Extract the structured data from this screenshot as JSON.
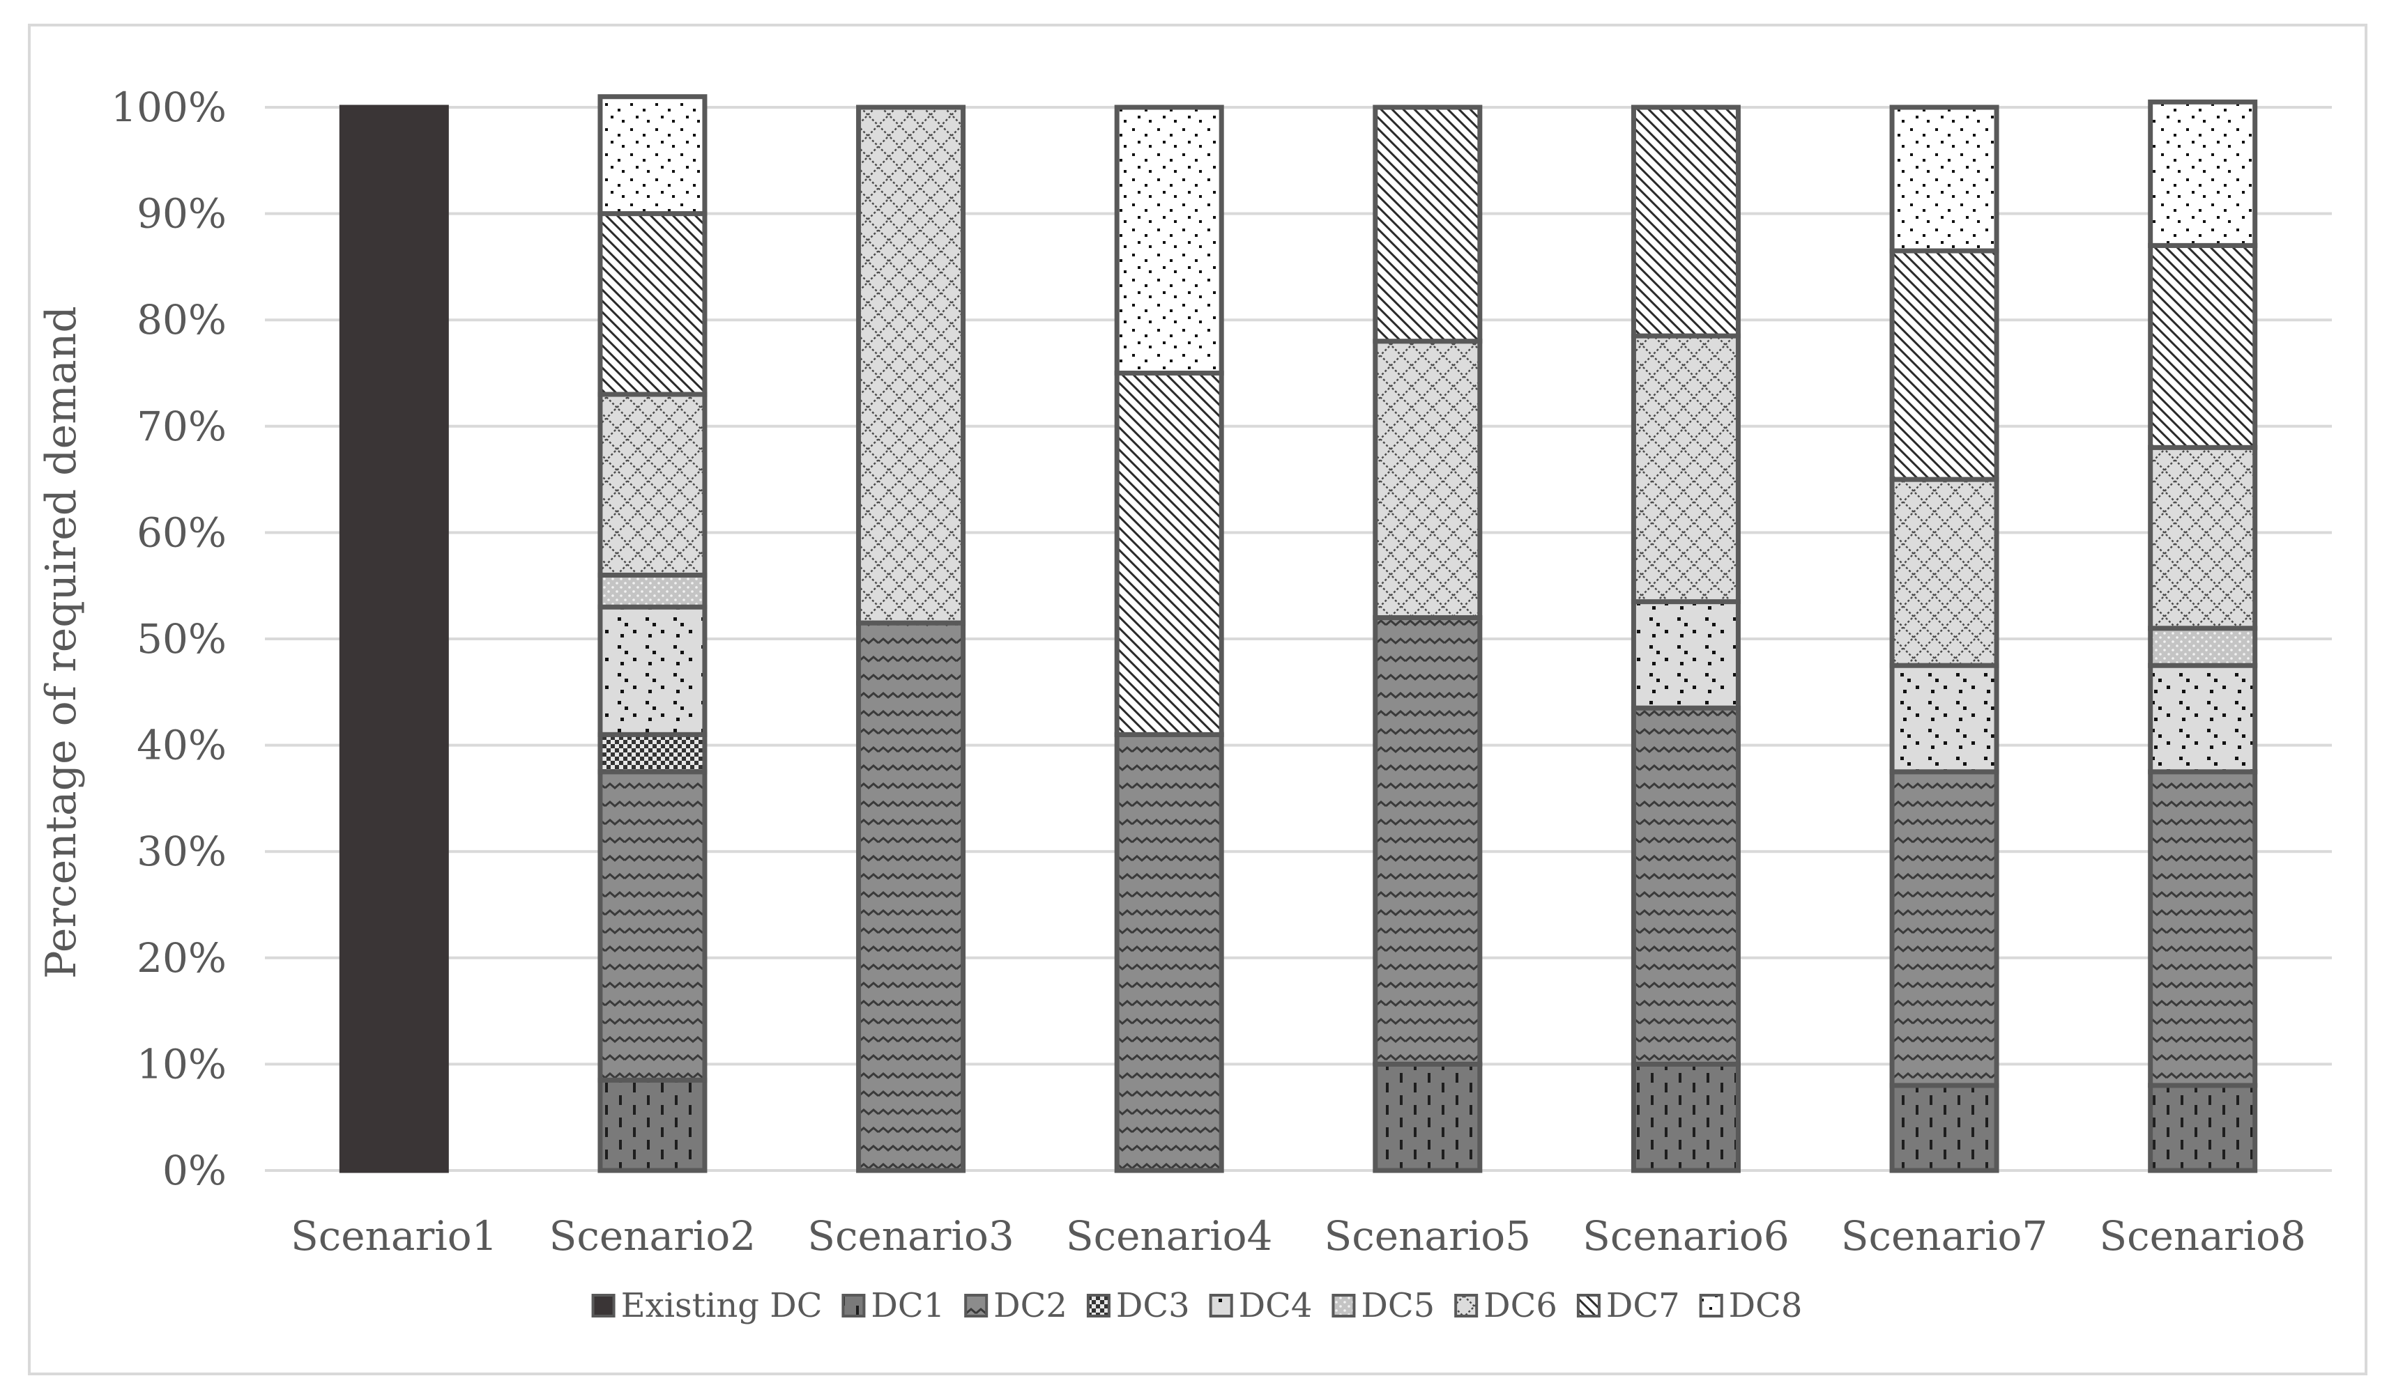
{
  "chart_data": {
    "type": "bar",
    "stacked": true,
    "percent_stacked": true,
    "title": "",
    "xlabel": "",
    "ylabel": "Percentage of required demand",
    "ylim": [
      0,
      100
    ],
    "y_ticks": [
      "0%",
      "10%",
      "20%",
      "30%",
      "40%",
      "50%",
      "60%",
      "70%",
      "80%",
      "90%",
      "100%"
    ],
    "grid": true,
    "legend_position": "bottom",
    "categories": [
      "Scenario1",
      "Scenario2",
      "Scenario3",
      "Scenario4",
      "Scenario5",
      "Scenario6",
      "Scenario7",
      "Scenario8"
    ],
    "series": [
      {
        "name": "Existing DC",
        "color": "#3a3536",
        "pattern": "solid",
        "values": [
          100,
          0,
          0,
          0,
          0,
          0,
          0,
          0
        ]
      },
      {
        "name": "DC1",
        "color": "#7a7a7a",
        "pattern": "dashes",
        "values": [
          0,
          8.5,
          0,
          0,
          10,
          10,
          8,
          8
        ]
      },
      {
        "name": "DC2",
        "color": "#8c8c8c",
        "pattern": "wave",
        "values": [
          0,
          29,
          51.5,
          41,
          42,
          33.5,
          29.5,
          29.5
        ]
      },
      {
        "name": "DC3",
        "color": "#6a6a6a",
        "pattern": "checker",
        "values": [
          0,
          3.5,
          0,
          0,
          0,
          0,
          0,
          0
        ]
      },
      {
        "name": "DC4",
        "color": "#dcdcdc",
        "pattern": "sparse-dots",
        "values": [
          0,
          12,
          0,
          0,
          0,
          10,
          10,
          10
        ]
      },
      {
        "name": "DC5",
        "color": "#c4c4c4",
        "pattern": "fine-dots",
        "values": [
          0,
          3,
          0,
          0,
          0,
          0,
          0,
          3.5
        ]
      },
      {
        "name": "DC6",
        "color": "#dcdcdc",
        "pattern": "crosshatch",
        "values": [
          0,
          17,
          48.5,
          0,
          26,
          25,
          17.5,
          17
        ]
      },
      {
        "name": "DC7",
        "color": "#ffffff",
        "pattern": "diagonal",
        "values": [
          0,
          17,
          0,
          34,
          22,
          21.5,
          21.5,
          19
        ]
      },
      {
        "name": "DC8",
        "color": "#ffffff",
        "pattern": "dots",
        "values": [
          0,
          11,
          0,
          25,
          0,
          0,
          13.5,
          13.5
        ]
      }
    ]
  }
}
